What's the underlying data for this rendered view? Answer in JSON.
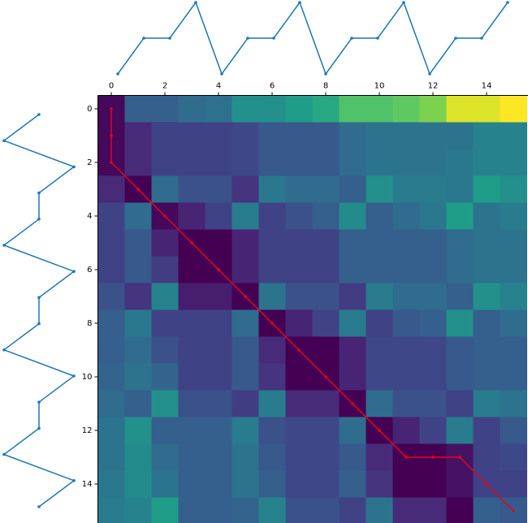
{
  "chart_data": [
    {
      "type": "line",
      "orientation": "horizontal",
      "color": "#1f77b4",
      "x": [
        0,
        1,
        2,
        3,
        4,
        5,
        6,
        7,
        8,
        9,
        10,
        11,
        12,
        13,
        14,
        15
      ],
      "values": [
        0,
        1,
        1,
        2,
        0,
        1,
        1,
        2,
        0,
        1,
        1,
        2,
        0,
        1,
        1,
        2
      ]
    },
    {
      "type": "line",
      "orientation": "vertical",
      "color": "#1f77b4",
      "x": [
        0,
        1,
        2,
        3,
        4,
        5,
        6,
        7,
        8,
        9,
        10,
        11,
        12,
        13,
        14,
        15
      ],
      "values": [
        1,
        0,
        2,
        1,
        1,
        0,
        2,
        1,
        1,
        0,
        2,
        1,
        1,
        0,
        2,
        1
      ]
    },
    {
      "type": "heatmap",
      "colormap": "viridis",
      "xlim": [
        -0.5,
        15.5
      ],
      "ylim": [
        15.5,
        -0.5
      ],
      "xticks": [
        0,
        2,
        4,
        6,
        8,
        10,
        12,
        14
      ],
      "yticks": [
        0,
        2,
        4,
        6,
        8,
        10,
        12,
        14
      ],
      "values": [
        [
          0.02,
          0.3,
          0.3,
          0.35,
          0.37,
          0.5,
          0.5,
          0.55,
          0.6,
          0.72,
          0.72,
          0.75,
          0.8,
          0.95,
          0.95,
          1.0
        ],
        [
          0.02,
          0.12,
          0.2,
          0.2,
          0.2,
          0.22,
          0.28,
          0.28,
          0.28,
          0.35,
          0.38,
          0.38,
          0.38,
          0.38,
          0.45,
          0.45
        ],
        [
          0.02,
          0.12,
          0.2,
          0.2,
          0.2,
          0.22,
          0.28,
          0.28,
          0.28,
          0.35,
          0.38,
          0.38,
          0.38,
          0.4,
          0.45,
          0.45
        ],
        [
          0.12,
          0.0,
          0.35,
          0.25,
          0.25,
          0.15,
          0.4,
          0.35,
          0.35,
          0.3,
          0.5,
          0.42,
          0.42,
          0.4,
          0.55,
          0.5
        ],
        [
          0.2,
          0.35,
          0.02,
          0.1,
          0.2,
          0.42,
          0.2,
          0.25,
          0.3,
          0.48,
          0.3,
          0.35,
          0.4,
          0.55,
          0.38,
          0.42
        ],
        [
          0.2,
          0.28,
          0.1,
          0.0,
          0.0,
          0.1,
          0.2,
          0.2,
          0.2,
          0.3,
          0.3,
          0.3,
          0.3,
          0.35,
          0.38,
          0.38
        ],
        [
          0.2,
          0.28,
          0.18,
          0.0,
          0.0,
          0.1,
          0.2,
          0.2,
          0.2,
          0.3,
          0.3,
          0.3,
          0.3,
          0.35,
          0.38,
          0.38
        ],
        [
          0.25,
          0.15,
          0.45,
          0.08,
          0.08,
          0.0,
          0.38,
          0.25,
          0.25,
          0.18,
          0.42,
          0.35,
          0.35,
          0.3,
          0.5,
          0.45
        ],
        [
          0.3,
          0.4,
          0.2,
          0.2,
          0.2,
          0.35,
          0.0,
          0.1,
          0.2,
          0.42,
          0.2,
          0.28,
          0.3,
          0.5,
          0.3,
          0.35
        ],
        [
          0.3,
          0.35,
          0.25,
          0.2,
          0.2,
          0.28,
          0.12,
          0.0,
          0.0,
          0.1,
          0.22,
          0.22,
          0.22,
          0.28,
          0.3,
          0.3
        ],
        [
          0.32,
          0.38,
          0.32,
          0.2,
          0.2,
          0.28,
          0.15,
          0.0,
          0.0,
          0.1,
          0.22,
          0.22,
          0.22,
          0.28,
          0.3,
          0.3
        ],
        [
          0.35,
          0.3,
          0.5,
          0.25,
          0.25,
          0.18,
          0.42,
          0.12,
          0.12,
          0.0,
          0.35,
          0.25,
          0.25,
          0.2,
          0.42,
          0.38
        ],
        [
          0.38,
          0.5,
          0.3,
          0.3,
          0.3,
          0.42,
          0.25,
          0.22,
          0.22,
          0.35,
          0.0,
          0.1,
          0.2,
          0.42,
          0.2,
          0.28
        ],
        [
          0.38,
          0.48,
          0.35,
          0.3,
          0.3,
          0.38,
          0.28,
          0.22,
          0.22,
          0.28,
          0.12,
          0.0,
          0.0,
          0.05,
          0.2,
          0.22
        ],
        [
          0.4,
          0.48,
          0.38,
          0.3,
          0.3,
          0.38,
          0.3,
          0.22,
          0.22,
          0.3,
          0.15,
          0.0,
          0.0,
          0.05,
          0.2,
          0.2
        ],
        [
          0.42,
          0.45,
          0.55,
          0.3,
          0.3,
          0.32,
          0.45,
          0.25,
          0.25,
          0.2,
          0.38,
          0.12,
          0.12,
          0.0,
          0.3,
          0.28
        ]
      ],
      "path": {
        "color": "#e8001c",
        "x": [
          0,
          0,
          0,
          1,
          2,
          3,
          4,
          5,
          6,
          7,
          8,
          9,
          10,
          11,
          12,
          13,
          14,
          15
        ],
        "y": [
          0,
          1,
          2,
          3,
          4,
          5,
          6,
          7,
          8,
          9,
          10,
          11,
          12,
          13,
          13,
          13,
          14,
          15
        ]
      }
    }
  ]
}
